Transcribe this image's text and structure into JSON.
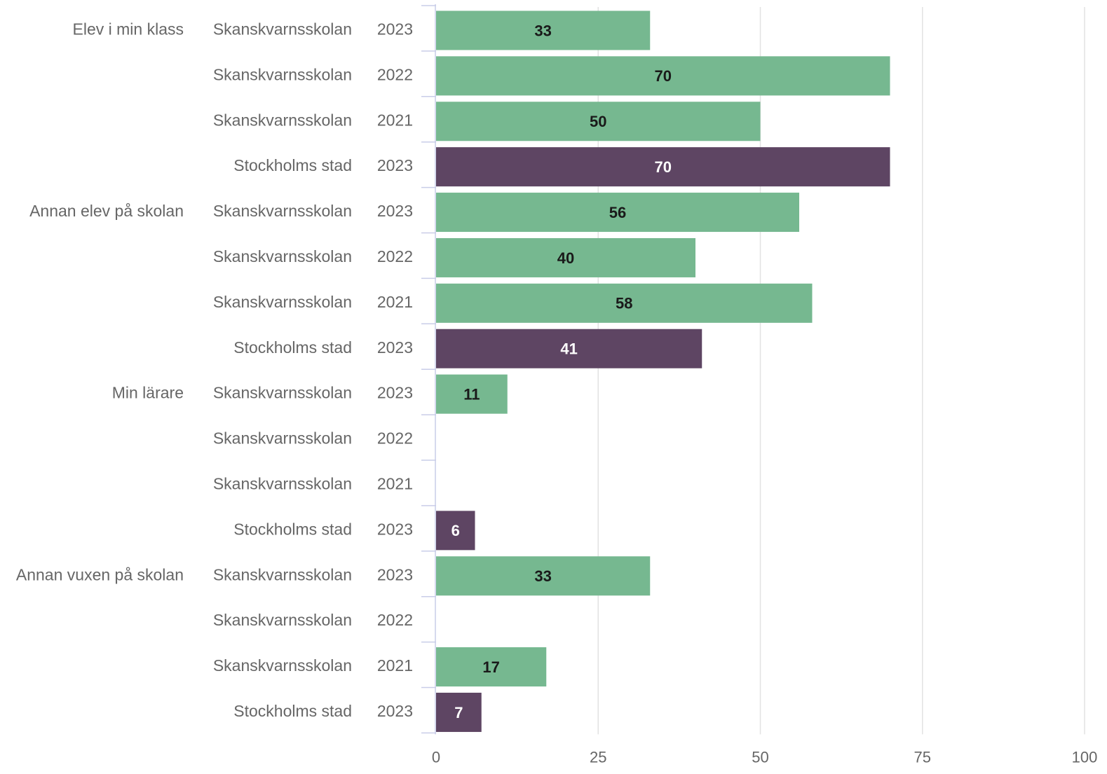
{
  "chart_data": {
    "type": "bar",
    "orientation": "horizontal",
    "colors": {
      "Skanskvarnsskolan": "#76b890",
      "Stockholms stad": "#5e4563"
    },
    "label_colors": {
      "Skanskvarnsskolan": "#1a1a1a",
      "Stockholms stad": "#ffffff"
    },
    "xlim": [
      0,
      100
    ],
    "xticks": [
      "0",
      "25",
      "50",
      "75",
      "100"
    ],
    "grid": true,
    "groups": [
      {
        "label": "Elev i min klass",
        "rows": [
          {
            "entity": "Skanskvarnsskolan",
            "year": "2023",
            "value": 33
          },
          {
            "entity": "Skanskvarnsskolan",
            "year": "2022",
            "value": 70
          },
          {
            "entity": "Skanskvarnsskolan",
            "year": "2021",
            "value": 50
          },
          {
            "entity": "Stockholms stad",
            "year": "2023",
            "value": 70
          }
        ]
      },
      {
        "label": "Annan elev på skolan",
        "rows": [
          {
            "entity": "Skanskvarnsskolan",
            "year": "2023",
            "value": 56
          },
          {
            "entity": "Skanskvarnsskolan",
            "year": "2022",
            "value": 40
          },
          {
            "entity": "Skanskvarnsskolan",
            "year": "2021",
            "value": 58
          },
          {
            "entity": "Stockholms stad",
            "year": "2023",
            "value": 41
          }
        ]
      },
      {
        "label": "Min lärare",
        "rows": [
          {
            "entity": "Skanskvarnsskolan",
            "year": "2023",
            "value": 11
          },
          {
            "entity": "Skanskvarnsskolan",
            "year": "2022",
            "value": null
          },
          {
            "entity": "Skanskvarnsskolan",
            "year": "2021",
            "value": null
          },
          {
            "entity": "Stockholms stad",
            "year": "2023",
            "value": 6
          }
        ]
      },
      {
        "label": "Annan vuxen på skolan",
        "rows": [
          {
            "entity": "Skanskvarnsskolan",
            "year": "2023",
            "value": 33
          },
          {
            "entity": "Skanskvarnsskolan",
            "year": "2022",
            "value": null
          },
          {
            "entity": "Skanskvarnsskolan",
            "year": "2021",
            "value": 17
          },
          {
            "entity": "Stockholms stad",
            "year": "2023",
            "value": 7
          }
        ]
      }
    ]
  }
}
